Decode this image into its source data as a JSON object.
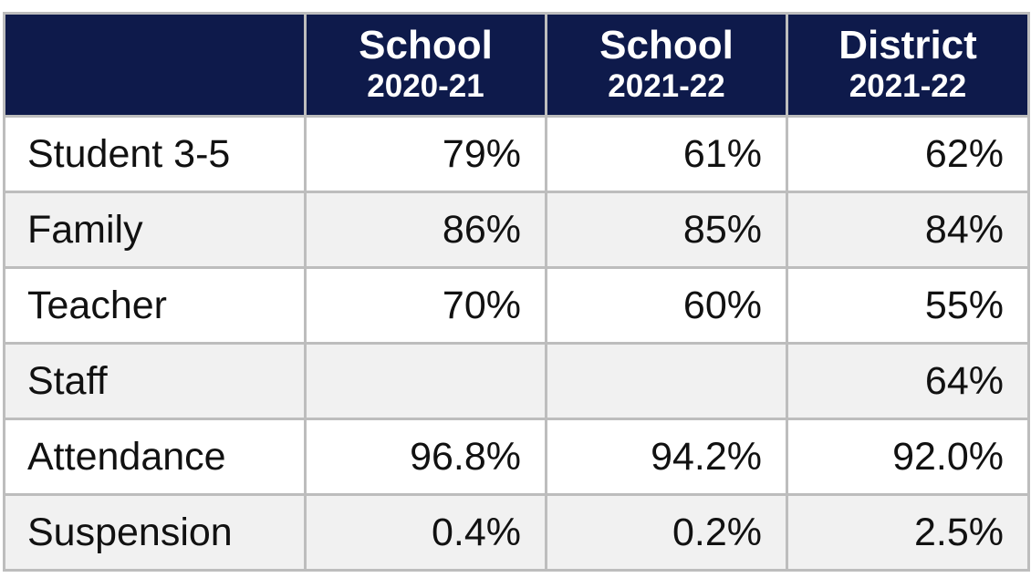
{
  "table": {
    "header": [
      null,
      {
        "line1": "School",
        "line2": "2020-21"
      },
      {
        "line1": "School",
        "line2": "2021-22"
      },
      {
        "line1": "District",
        "line2": "2021-22"
      }
    ],
    "rows": [
      [
        "Student 3-5",
        "79%",
        "61%",
        "62%"
      ],
      [
        "Family",
        "86%",
        "85%",
        "84%"
      ],
      [
        "Teacher",
        "70%",
        "60%",
        "55%"
      ],
      [
        "Staff",
        null,
        null,
        "64%"
      ],
      [
        "Attendance",
        "96.8%",
        "94.2%",
        "92.0%"
      ],
      [
        "Suspension",
        "0.4%",
        "0.2%",
        "2.5%"
      ]
    ]
  }
}
